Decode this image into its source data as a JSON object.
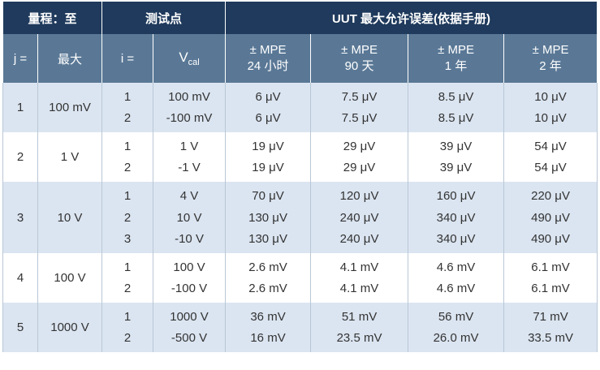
{
  "header": {
    "groups": [
      "量程：至",
      "测试点",
      "UUT 最大允许误差(依据手册)"
    ],
    "columns": [
      {
        "lines": [
          "j ="
        ]
      },
      {
        "lines": [
          "最大"
        ]
      },
      {
        "lines": [
          "i ="
        ]
      },
      {
        "main": "V",
        "sub": "cal"
      },
      {
        "lines": [
          "± MPE",
          "24 小时"
        ]
      },
      {
        "lines": [
          "± MPE",
          "90 天"
        ]
      },
      {
        "lines": [
          "± MPE",
          "1 年"
        ]
      },
      {
        "lines": [
          "± MPE",
          "2 年"
        ]
      }
    ]
  },
  "rows": [
    {
      "j": "1",
      "range": "100 mV",
      "tests": [
        {
          "i": "1",
          "vcal": "100 mV",
          "mpe": [
            "6 μV",
            "7.5 μV",
            "8.5 μV",
            "10 μV"
          ]
        },
        {
          "i": "2",
          "vcal": "-100 mV",
          "mpe": [
            "6 μV",
            "7.5 μV",
            "8.5 μV",
            "10 μV"
          ]
        }
      ]
    },
    {
      "j": "2",
      "range": "1 V",
      "tests": [
        {
          "i": "1",
          "vcal": "1 V",
          "mpe": [
            "19 μV",
            "29 μV",
            "39 μV",
            "54 μV"
          ]
        },
        {
          "i": "2",
          "vcal": "-1 V",
          "mpe": [
            "19 μV",
            "29 μV",
            "39 μV",
            "54 μV"
          ]
        }
      ]
    },
    {
      "j": "3",
      "range": "10 V",
      "tests": [
        {
          "i": "1",
          "vcal": "4 V",
          "mpe": [
            "70 μV",
            "120 μV",
            "160 μV",
            "220 μV"
          ]
        },
        {
          "i": "2",
          "vcal": "10 V",
          "mpe": [
            "130 μV",
            "240 μV",
            "340 μV",
            "490 μV"
          ]
        },
        {
          "i": "3",
          "vcal": "-10 V",
          "mpe": [
            "130 μV",
            "240 μV",
            "340 μV",
            "490 μV"
          ]
        }
      ]
    },
    {
      "j": "4",
      "range": "100 V",
      "tests": [
        {
          "i": "1",
          "vcal": "100 V",
          "mpe": [
            "2.6 mV",
            "4.1 mV",
            "4.6 mV",
            "6.1 mV"
          ]
        },
        {
          "i": "2",
          "vcal": "-100 V",
          "mpe": [
            "2.6 mV",
            "4.1 mV",
            "4.6 mV",
            "6.1 mV"
          ]
        }
      ]
    },
    {
      "j": "5",
      "range": "1000 V",
      "tests": [
        {
          "i": "1",
          "vcal": "1000 V",
          "mpe": [
            "36 mV",
            "51 mV",
            "56 mV",
            "71 mV"
          ]
        },
        {
          "i": "2",
          "vcal": "-500 V",
          "mpe": [
            "16 mV",
            "23.5 mV",
            "26.0 mV",
            "33.5 mV"
          ]
        }
      ]
    }
  ]
}
